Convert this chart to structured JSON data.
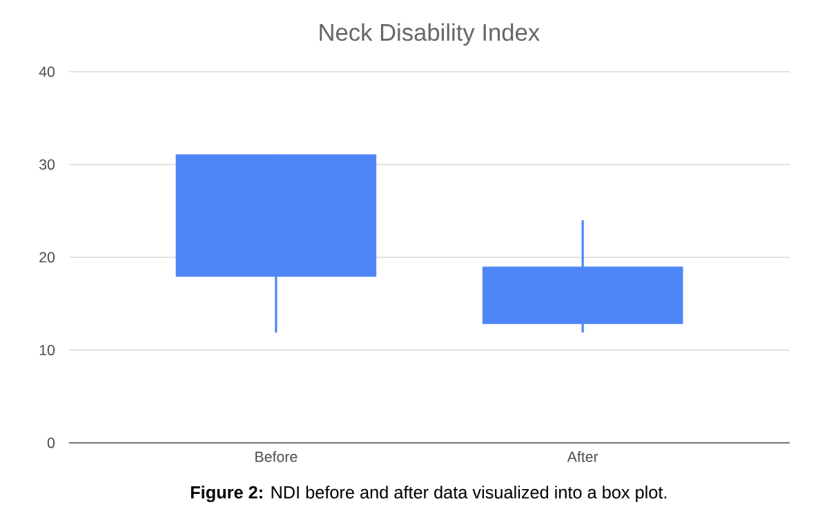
{
  "chart_data": {
    "type": "candlestick",
    "title": "Neck Disability Index",
    "categories": [
      "Before",
      "After"
    ],
    "ohlc": [
      [
        17.9,
        31.1,
        11.9,
        31.1
      ],
      [
        12.8,
        24.0,
        11.9,
        19.0
      ]
    ],
    "color": "#4e86f6",
    "ylim": [
      0,
      40
    ],
    "yticks": [
      0,
      10,
      20,
      30,
      40
    ],
    "grid": "y",
    "annotations": [
      "**Figure 2:** NDI before and after data visualized into a box plot."
    ]
  }
}
